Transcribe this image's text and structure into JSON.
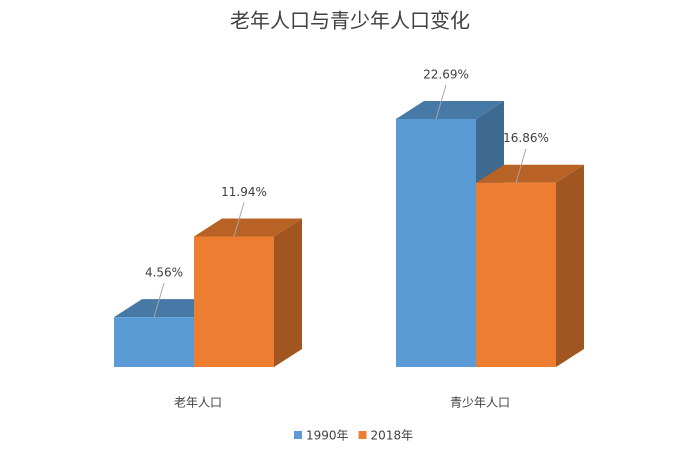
{
  "chart_data": {
    "type": "bar3d",
    "title": "老年人口与青少年人口变化",
    "categories": [
      "老年人口",
      "青少年人口"
    ],
    "series": [
      {
        "name": "1990年",
        "color": "#5b9bd5",
        "values": [
          4.56,
          22.69
        ],
        "value_labels": [
          "4.56%",
          "22.69%"
        ]
      },
      {
        "name": "2018年",
        "color": "#ed7d31",
        "values": [
          11.94,
          16.86
        ],
        "value_labels": [
          "11.94%",
          "16.86%"
        ]
      }
    ]
  }
}
